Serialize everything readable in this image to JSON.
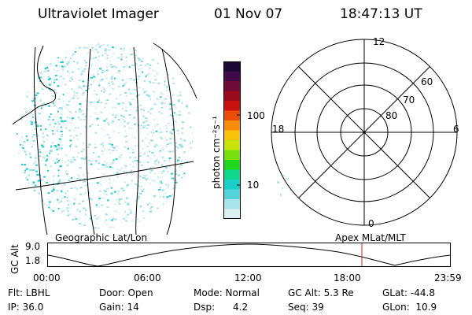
{
  "header": {
    "instrument": "Ultraviolet Imager",
    "date": "01 Nov 07",
    "time": "18:47:13 UT"
  },
  "colorbar": {
    "unit_label": "photon cm⁻²s⁻¹",
    "tick_labels": [
      "100",
      "10"
    ],
    "colors": [
      "#1a0838",
      "#420a4a",
      "#6e0a36",
      "#980a1c",
      "#c8100e",
      "#ea4c0a",
      "#f88c0a",
      "#f8c40a",
      "#c8e40a",
      "#78e00a",
      "#1ed81e",
      "#10d88a",
      "#18d0c8",
      "#52d4dc",
      "#a8e4ea",
      "#dcf0f4"
    ]
  },
  "left_panel": {
    "caption": "Geographic Lat/Lon",
    "emission_color": "#22cccc"
  },
  "right_panel": {
    "caption": "Apex MLat/MLT",
    "mlt_labels": {
      "top": "12",
      "left": "18",
      "right": "6",
      "bottom": "0"
    },
    "lat_labels": [
      "60",
      "70",
      "80"
    ]
  },
  "altitude_plot": {
    "ylabel": "GC Alt",
    "ytick_labels": [
      "9.0",
      "1.8"
    ],
    "xtick_labels": [
      "00:00",
      "06:00",
      "12:00",
      "18:00",
      "23:59"
    ],
    "current_marker_color": "#cc2222"
  },
  "footer": {
    "row1": {
      "flt": "Flt: LBHL",
      "door": "Door: Open",
      "mode": "Mode: Normal",
      "gc_alt": "GC Alt: 5.3 Re",
      "glat": "GLat: -44.8"
    },
    "row2": {
      "ip": "IP: 36.0",
      "gain": "Gain: 14",
      "dsp": "Dsp:      4.2",
      "seq": "Seq: 39",
      "glon": "GLon:  10.9"
    }
  }
}
